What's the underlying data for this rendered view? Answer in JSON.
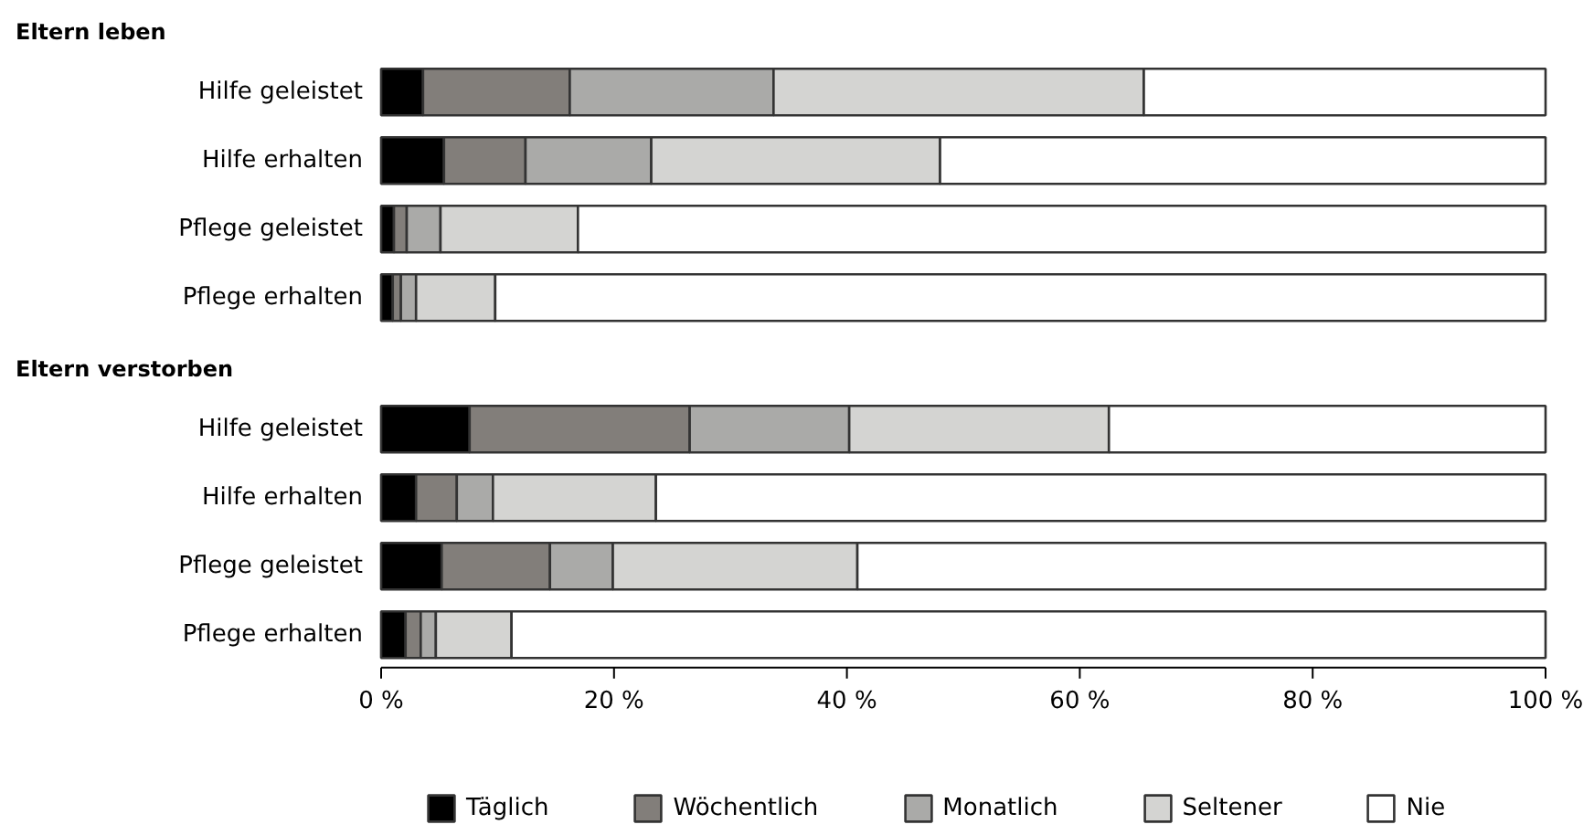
{
  "chart_data": [
    {
      "type": "bar",
      "title": "Eltern leben",
      "orientation": "horizontal",
      "stacked": true,
      "categories": [
        "Hilfe geleistet",
        "Hilfe erhalten",
        "Pflege geleistet",
        "Pflege erhalten"
      ],
      "xlim": [
        0,
        100
      ],
      "tick_labels": "y",
      "legend": false,
      "series": [
        {
          "color": "#000000",
          "values": [
            3.6,
            5.4,
            1.1,
            1.0
          ]
        },
        {
          "color": "#827e7a",
          "values": [
            12.6,
            7.0,
            1.1,
            0.7
          ]
        },
        {
          "color": "#aaaaa8",
          "values": [
            17.5,
            10.8,
            2.9,
            1.3
          ]
        },
        {
          "color": "#d4d4d2",
          "values": [
            31.8,
            24.8,
            11.8,
            6.8
          ]
        },
        {
          "color": "#ffffff",
          "values": [
            34.5,
            52.0,
            83.1,
            90.2
          ]
        }
      ]
    },
    {
      "type": "bar",
      "title": "Eltern verstorben",
      "orientation": "horizontal",
      "stacked": true,
      "categories": [
        "Hilfe geleistet",
        "Hilfe erhalten",
        "Pflege geleistet",
        "Pflege erhalten"
      ],
      "xlim": [
        0,
        100
      ],
      "xticks": [
        {
          "value": 0,
          "label": "0 %"
        },
        {
          "value": 20,
          "label": "20 %"
        },
        {
          "value": 40,
          "label": "40 %"
        },
        {
          "value": 60,
          "label": "60 %"
        },
        {
          "value": 80,
          "label": "80 %"
        },
        {
          "value": 100,
          "label": "100 %"
        }
      ],
      "legend": "bottom",
      "series": [
        {
          "name": "Täglich",
          "color": "#000000",
          "values": [
            7.6,
            3.0,
            5.2,
            2.1
          ]
        },
        {
          "name": "Wöchentlich",
          "color": "#827e7a",
          "values": [
            18.9,
            3.5,
            9.3,
            1.3
          ]
        },
        {
          "name": "Monatlich",
          "color": "#aaaaa8",
          "values": [
            13.7,
            3.1,
            5.4,
            1.3
          ]
        },
        {
          "name": "Seltener",
          "color": "#d4d4d2",
          "values": [
            22.3,
            14.0,
            21.0,
            6.5
          ]
        },
        {
          "name": "Nie",
          "color": "#ffffff",
          "values": [
            37.5,
            76.4,
            59.1,
            88.8
          ]
        }
      ]
    }
  ]
}
